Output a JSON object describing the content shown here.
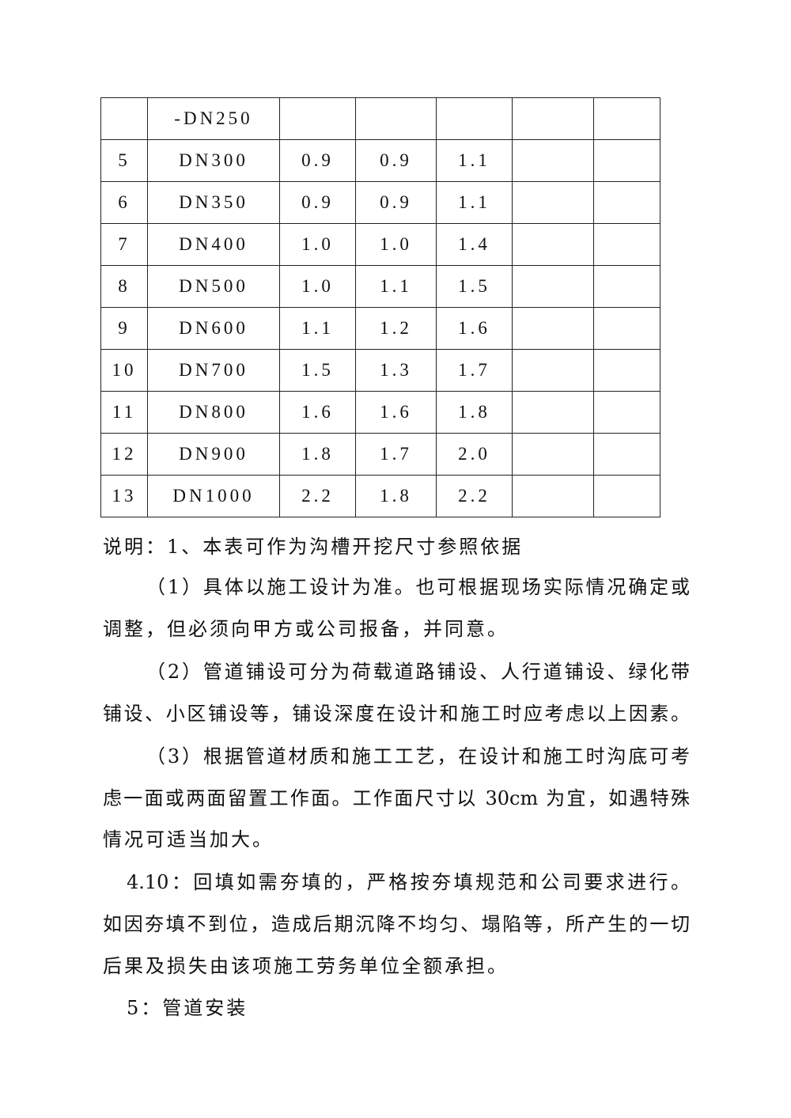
{
  "table": {
    "rows": [
      [
        "",
        "-DN250",
        "",
        "",
        "",
        "",
        ""
      ],
      [
        "5",
        "DN300",
        "0.9",
        "0.9",
        "1.1",
        "",
        ""
      ],
      [
        "6",
        "DN350",
        "0.9",
        "0.9",
        "1.1",
        "",
        ""
      ],
      [
        "7",
        "DN400",
        "1.0",
        "1.0",
        "1.4",
        "",
        ""
      ],
      [
        "8",
        "DN500",
        "1.0",
        "1.1",
        "1.5",
        "",
        ""
      ],
      [
        "9",
        "DN600",
        "1.1",
        "1.2",
        "1.6",
        "",
        ""
      ],
      [
        "10",
        "DN700",
        "1.5",
        "1.3",
        "1.7",
        "",
        ""
      ],
      [
        "11",
        "DN800",
        "1.6",
        "1.6",
        "1.8",
        "",
        ""
      ],
      [
        "12",
        "DN900",
        "1.8",
        "1.7",
        "2.0",
        "",
        ""
      ],
      [
        "13",
        "DN1000",
        "2.2",
        "1.8",
        "2.2",
        "",
        ""
      ]
    ]
  },
  "text": {
    "l1": "说明：1、本表可作为沟槽开挖尺寸参照依据",
    "l2": "（1）具体以施工设计为准。也可根据现场实际情况确定或",
    "l3": "调整，但必须向甲方或公司报备，并同意。",
    "l4": "（2）管道铺设可分为荷载道路铺设、人行道铺设、绿化带",
    "l5": "铺设、小区铺设等，铺设深度在设计和施工时应考虑以上因素。",
    "l6": "（3）根据管道材质和施工工艺，在设计和施工时沟底可考",
    "l7": "虑一面或两面留置工作面。工作面尺寸以 30cm 为宜，如遇特殊",
    "l8": "情况可适当加大。",
    "l9": "4.10：回填如需夯填的，严格按夯填规范和公司要求进行。",
    "l10": "如因夯填不到位，造成后期沉降不均匀、塌陷等，所产生的一切",
    "l11": "后果及损失由该项施工劳务单位全额承担。",
    "l12": "5：管道安装"
  }
}
